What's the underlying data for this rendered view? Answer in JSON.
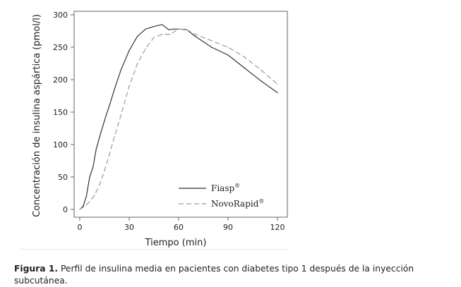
{
  "chart_data": {
    "type": "line",
    "title": "",
    "xlabel": "Tiempo (min)",
    "ylabel": "Concentración de insulina aspártica (pmol/l)",
    "xlim": [
      0,
      120
    ],
    "ylim": [
      0,
      300
    ],
    "xticks": [
      0,
      30,
      60,
      90,
      120
    ],
    "yticks": [
      0,
      50,
      100,
      150,
      200,
      250,
      300
    ],
    "grid": false,
    "legend_position": "bottom-right",
    "series": [
      {
        "name": "Fiasp",
        "name_sup": "®",
        "style": "solid",
        "color": "#333333",
        "x": [
          0,
          2,
          4,
          6,
          8,
          10,
          13,
          16,
          18,
          21,
          25,
          30,
          35,
          40,
          45,
          50,
          54,
          57,
          60,
          65,
          70,
          80,
          90,
          100,
          110,
          120
        ],
        "y": [
          0,
          5,
          20,
          50,
          65,
          93,
          120,
          145,
          160,
          185,
          215,
          245,
          267,
          278,
          282,
          285,
          277,
          278,
          278,
          277,
          267,
          250,
          238,
          218,
          198,
          180
        ]
      },
      {
        "name": "NovoRapid",
        "name_sup": "®",
        "style": "dashed",
        "color": "#999999",
        "x": [
          0,
          3,
          6,
          9,
          12,
          15,
          18,
          21,
          25,
          30,
          35,
          40,
          45,
          50,
          55,
          58,
          60,
          65,
          70,
          75,
          80,
          90,
          100,
          110,
          120
        ],
        "y": [
          0,
          5,
          12,
          22,
          38,
          60,
          85,
          112,
          145,
          190,
          225,
          248,
          265,
          270,
          270,
          275,
          278,
          277,
          270,
          265,
          260,
          250,
          235,
          215,
          193
        ]
      }
    ]
  },
  "caption": {
    "label": "Figura 1.",
    "text": " Perfil de insulina media en pacientes con diabetes tipo 1 después de la inyección subcutánea."
  }
}
